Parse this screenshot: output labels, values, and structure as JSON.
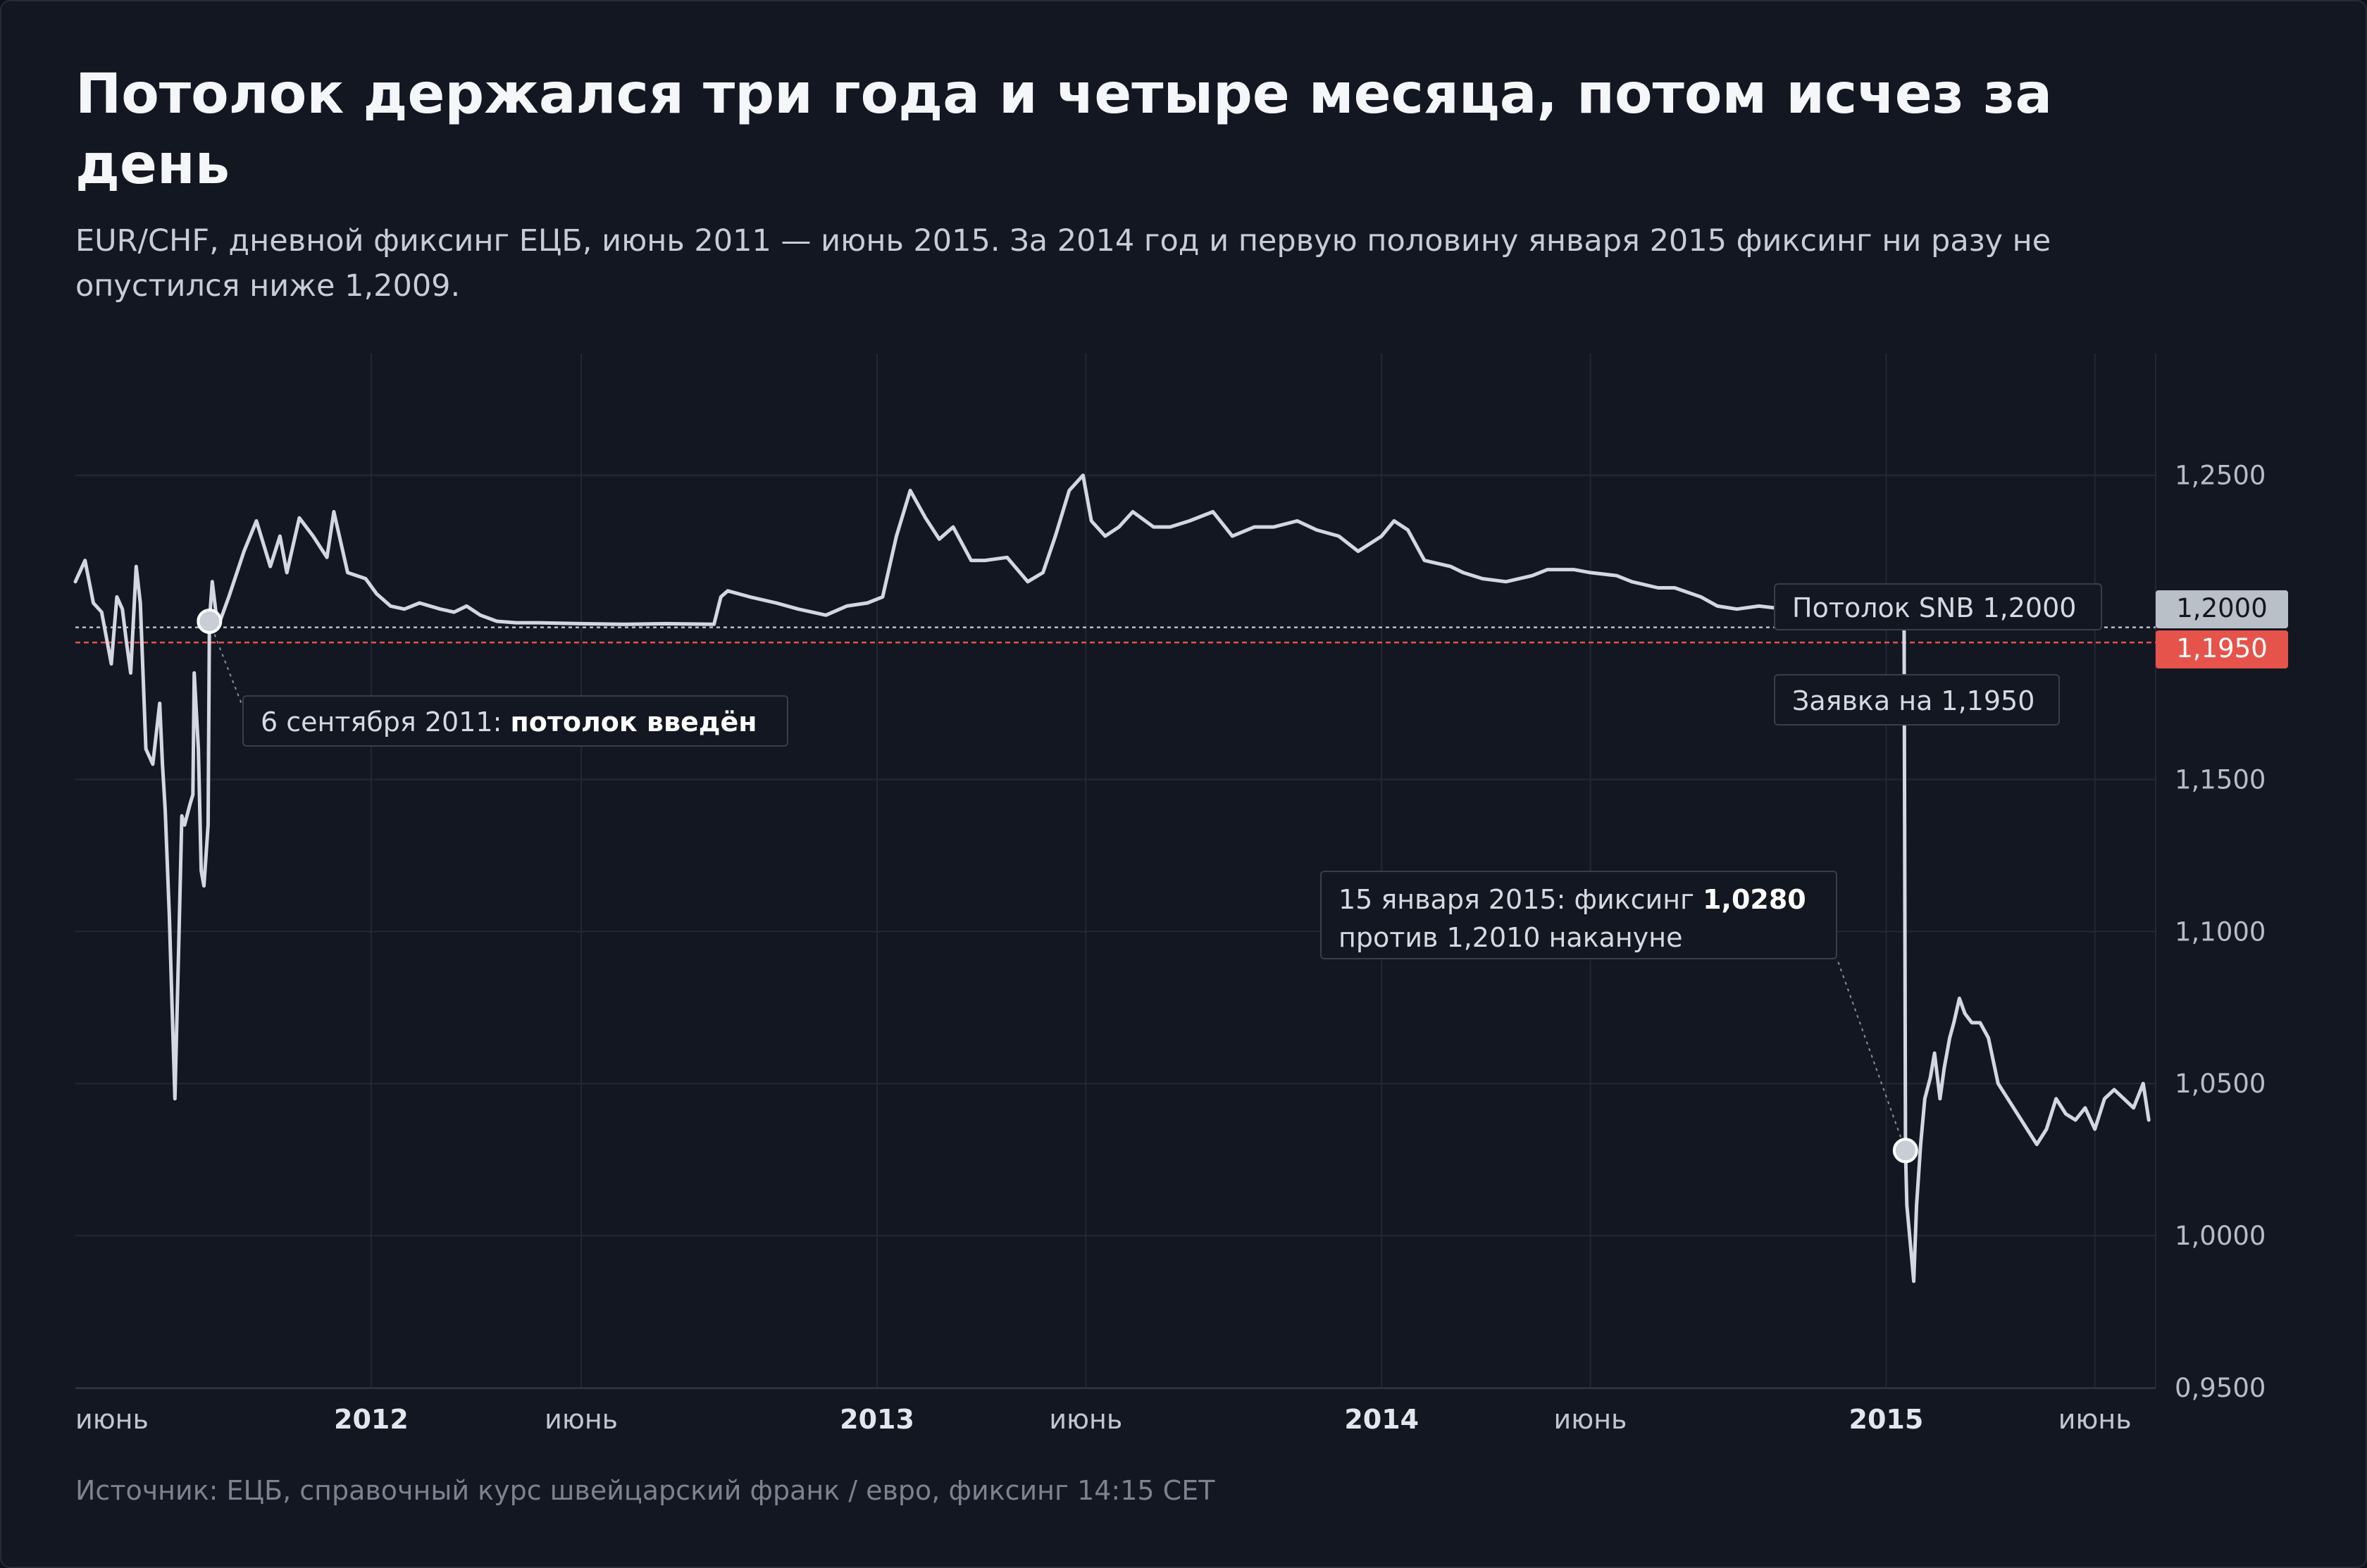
{
  "title": "Потолок держался три года и четыре месяца, потом исчез за день",
  "subtitle": "EUR/CHF, дневной фиксинг ЕЦБ, июнь 2011 — июнь 2015. За 2014 год и первую половину января 2015 фиксинг ни разу не опустился ниже 1,2009.",
  "source": "Источник: ЕЦБ, справочный курс швейцарский франк / евро, фиксинг 14:15 CET",
  "colors": {
    "background": "#131721",
    "line": "#d4d7e3",
    "ceiling": "#b9c0c8",
    "bid": "#e5534b",
    "grid": "#232836"
  },
  "annotations": {
    "ceiling_intro_text": "6 сентября 2011: ",
    "ceiling_intro_bold": "потолок введён",
    "ceiling_label": "Потолок SNB 1,2000",
    "bid_label": "Заявка на 1,1950",
    "drop_text1": "15 января 2015: фиксинг ",
    "drop_bold": "1,0280",
    "drop_text2": "против 1,2010 накануне"
  },
  "chart_data": {
    "type": "line",
    "title": "Потолок держался три года и четыре месяца, потом исчез за день",
    "xlabel": "",
    "ylabel": "",
    "xlim": [
      "2011-06-01",
      "2015-07-15"
    ],
    "ylim": [
      0.95,
      1.29
    ],
    "x_ticks": [
      {
        "date": "2011-06-01",
        "label": "июнь",
        "bold": false
      },
      {
        "date": "2012-01-01",
        "label": "2012",
        "bold": true
      },
      {
        "date": "2012-06-01",
        "label": "июнь",
        "bold": false
      },
      {
        "date": "2013-01-01",
        "label": "2013",
        "bold": true
      },
      {
        "date": "2013-06-01",
        "label": "июнь",
        "bold": false
      },
      {
        "date": "2014-01-01",
        "label": "2014",
        "bold": true
      },
      {
        "date": "2014-06-01",
        "label": "июнь",
        "bold": false
      },
      {
        "date": "2015-01-01",
        "label": "2015",
        "bold": true
      },
      {
        "date": "2015-06-01",
        "label": "июнь",
        "bold": false
      }
    ],
    "y_ticks": [
      {
        "value": 0.95,
        "label": "0,9500"
      },
      {
        "value": 1.0,
        "label": "1,0000"
      },
      {
        "value": 1.05,
        "label": "1,0500"
      },
      {
        "value": 1.1,
        "label": "1,1000"
      },
      {
        "value": 1.15,
        "label": "1,1500"
      },
      {
        "value": 1.25,
        "label": "1,2500"
      }
    ],
    "reference_lines": [
      {
        "value": 1.2,
        "label": "1,2000",
        "style": "dotted",
        "color": "#b9c0c8"
      },
      {
        "value": 1.195,
        "label": "1,1950",
        "style": "dashed",
        "color": "#e5534b"
      }
    ],
    "markers": [
      {
        "date": "2011-09-06",
        "value": 1.202
      },
      {
        "date": "2015-01-15",
        "value": 1.028
      }
    ],
    "series": [
      {
        "values": [
          [
            "2011-06-01",
            1.215
          ],
          [
            "2011-06-08",
            1.222
          ],
          [
            "2011-06-14",
            1.208
          ],
          [
            "2011-06-20",
            1.205
          ],
          [
            "2011-06-27",
            1.188
          ],
          [
            "2011-07-01",
            1.21
          ],
          [
            "2011-07-05",
            1.206
          ],
          [
            "2011-07-08",
            1.195
          ],
          [
            "2011-07-11",
            1.185
          ],
          [
            "2011-07-15",
            1.22
          ],
          [
            "2011-07-18",
            1.208
          ],
          [
            "2011-07-22",
            1.16
          ],
          [
            "2011-07-27",
            1.155
          ],
          [
            "2011-08-01",
            1.175
          ],
          [
            "2011-08-03",
            1.155
          ],
          [
            "2011-08-05",
            1.14
          ],
          [
            "2011-08-08",
            1.105
          ],
          [
            "2011-08-10",
            1.075
          ],
          [
            "2011-08-11",
            1.06
          ],
          [
            "2011-08-12",
            1.045
          ],
          [
            "2011-08-15",
            1.1
          ],
          [
            "2011-08-17",
            1.138
          ],
          [
            "2011-08-19",
            1.135
          ],
          [
            "2011-08-23",
            1.142
          ],
          [
            "2011-08-25",
            1.145
          ],
          [
            "2011-08-26",
            1.185
          ],
          [
            "2011-08-29",
            1.16
          ],
          [
            "2011-08-31",
            1.12
          ],
          [
            "2011-09-02",
            1.115
          ],
          [
            "2011-09-05",
            1.135
          ],
          [
            "2011-09-06",
            1.202
          ],
          [
            "2011-09-08",
            1.215
          ],
          [
            "2011-09-12",
            1.2
          ],
          [
            "2011-09-20",
            1.21
          ],
          [
            "2011-10-01",
            1.225
          ],
          [
            "2011-10-10",
            1.235
          ],
          [
            "2011-10-20",
            1.22
          ],
          [
            "2011-10-27",
            1.23
          ],
          [
            "2011-11-01",
            1.218
          ],
          [
            "2011-11-10",
            1.236
          ],
          [
            "2011-11-20",
            1.23
          ],
          [
            "2011-11-30",
            1.223
          ],
          [
            "2011-12-05",
            1.238
          ],
          [
            "2011-12-15",
            1.218
          ],
          [
            "2011-12-28",
            1.216
          ],
          [
            "2012-01-05",
            1.211
          ],
          [
            "2012-01-15",
            1.207
          ],
          [
            "2012-01-25",
            1.206
          ],
          [
            "2012-02-05",
            1.208
          ],
          [
            "2012-02-20",
            1.206
          ],
          [
            "2012-03-01",
            1.205
          ],
          [
            "2012-03-10",
            1.207
          ],
          [
            "2012-03-20",
            1.204
          ],
          [
            "2012-04-01",
            1.202
          ],
          [
            "2012-04-15",
            1.2015
          ],
          [
            "2012-05-01",
            1.2015
          ],
          [
            "2012-06-01",
            1.2012
          ],
          [
            "2012-07-01",
            1.201
          ],
          [
            "2012-08-01",
            1.2012
          ],
          [
            "2012-09-05",
            1.201
          ],
          [
            "2012-09-10",
            1.21
          ],
          [
            "2012-09-15",
            1.212
          ],
          [
            "2012-10-01",
            1.21
          ],
          [
            "2012-10-20",
            1.208
          ],
          [
            "2012-11-05",
            1.206
          ],
          [
            "2012-11-25",
            1.204
          ],
          [
            "2012-12-10",
            1.207
          ],
          [
            "2012-12-25",
            1.208
          ],
          [
            "2013-01-05",
            1.21
          ],
          [
            "2013-01-15",
            1.23
          ],
          [
            "2013-01-25",
            1.245
          ],
          [
            "2013-02-05",
            1.236
          ],
          [
            "2013-02-15",
            1.229
          ],
          [
            "2013-02-25",
            1.233
          ],
          [
            "2013-03-10",
            1.222
          ],
          [
            "2013-03-20",
            1.222
          ],
          [
            "2013-04-05",
            1.223
          ],
          [
            "2013-04-20",
            1.215
          ],
          [
            "2013-05-01",
            1.218
          ],
          [
            "2013-05-10",
            1.23
          ],
          [
            "2013-05-20",
            1.245
          ],
          [
            "2013-05-30",
            1.25
          ],
          [
            "2013-06-05",
            1.235
          ],
          [
            "2013-06-15",
            1.23
          ],
          [
            "2013-06-25",
            1.233
          ],
          [
            "2013-07-05",
            1.238
          ],
          [
            "2013-07-20",
            1.233
          ],
          [
            "2013-08-01",
            1.233
          ],
          [
            "2013-08-15",
            1.235
          ],
          [
            "2013-09-01",
            1.238
          ],
          [
            "2013-09-15",
            1.23
          ],
          [
            "2013-10-01",
            1.233
          ],
          [
            "2013-10-15",
            1.233
          ],
          [
            "2013-11-01",
            1.235
          ],
          [
            "2013-11-15",
            1.232
          ],
          [
            "2013-12-01",
            1.23
          ],
          [
            "2013-12-15",
            1.225
          ],
          [
            "2014-01-01",
            1.23
          ],
          [
            "2014-01-10",
            1.235
          ],
          [
            "2014-01-20",
            1.232
          ],
          [
            "2014-02-01",
            1.222
          ],
          [
            "2014-02-20",
            1.22
          ],
          [
            "2014-03-01",
            1.218
          ],
          [
            "2014-03-15",
            1.216
          ],
          [
            "2014-04-01",
            1.215
          ],
          [
            "2014-04-20",
            1.217
          ],
          [
            "2014-05-01",
            1.219
          ],
          [
            "2014-05-20",
            1.219
          ],
          [
            "2014-06-01",
            1.218
          ],
          [
            "2014-06-20",
            1.217
          ],
          [
            "2014-07-01",
            1.215
          ],
          [
            "2014-07-20",
            1.213
          ],
          [
            "2014-08-01",
            1.213
          ],
          [
            "2014-08-20",
            1.21
          ],
          [
            "2014-09-01",
            1.207
          ],
          [
            "2014-09-15",
            1.206
          ],
          [
            "2014-10-01",
            1.207
          ],
          [
            "2014-10-20",
            1.206
          ],
          [
            "2014-11-01",
            1.204
          ],
          [
            "2014-11-20",
            1.203
          ],
          [
            "2014-12-01",
            1.202
          ],
          [
            "2014-12-20",
            1.201
          ],
          [
            "2015-01-01",
            1.201
          ],
          [
            "2015-01-14",
            1.201
          ],
          [
            "2015-01-15",
            1.028
          ],
          [
            "2015-01-16",
            1.01
          ],
          [
            "2015-01-19",
            0.995
          ],
          [
            "2015-01-21",
            0.985
          ],
          [
            "2015-01-23",
            1.01
          ],
          [
            "2015-01-26",
            1.03
          ],
          [
            "2015-01-29",
            1.045
          ],
          [
            "2015-02-02",
            1.052
          ],
          [
            "2015-02-05",
            1.06
          ],
          [
            "2015-02-09",
            1.045
          ],
          [
            "2015-02-12",
            1.055
          ],
          [
            "2015-02-16",
            1.065
          ],
          [
            "2015-02-19",
            1.07
          ],
          [
            "2015-02-23",
            1.078
          ],
          [
            "2015-02-27",
            1.073
          ],
          [
            "2015-03-04",
            1.07
          ],
          [
            "2015-03-10",
            1.07
          ],
          [
            "2015-03-16",
            1.065
          ],
          [
            "2015-03-23",
            1.05
          ],
          [
            "2015-03-30",
            1.045
          ],
          [
            "2015-04-06",
            1.04
          ],
          [
            "2015-04-13",
            1.035
          ],
          [
            "2015-04-20",
            1.03
          ],
          [
            "2015-04-27",
            1.035
          ],
          [
            "2015-05-04",
            1.045
          ],
          [
            "2015-05-11",
            1.04
          ],
          [
            "2015-05-18",
            1.038
          ],
          [
            "2015-05-25",
            1.042
          ],
          [
            "2015-06-01",
            1.035
          ],
          [
            "2015-06-08",
            1.045
          ],
          [
            "2015-06-15",
            1.048
          ],
          [
            "2015-06-22",
            1.045
          ],
          [
            "2015-06-29",
            1.042
          ],
          [
            "2015-07-06",
            1.05
          ],
          [
            "2015-07-10",
            1.038
          ]
        ]
      }
    ]
  }
}
